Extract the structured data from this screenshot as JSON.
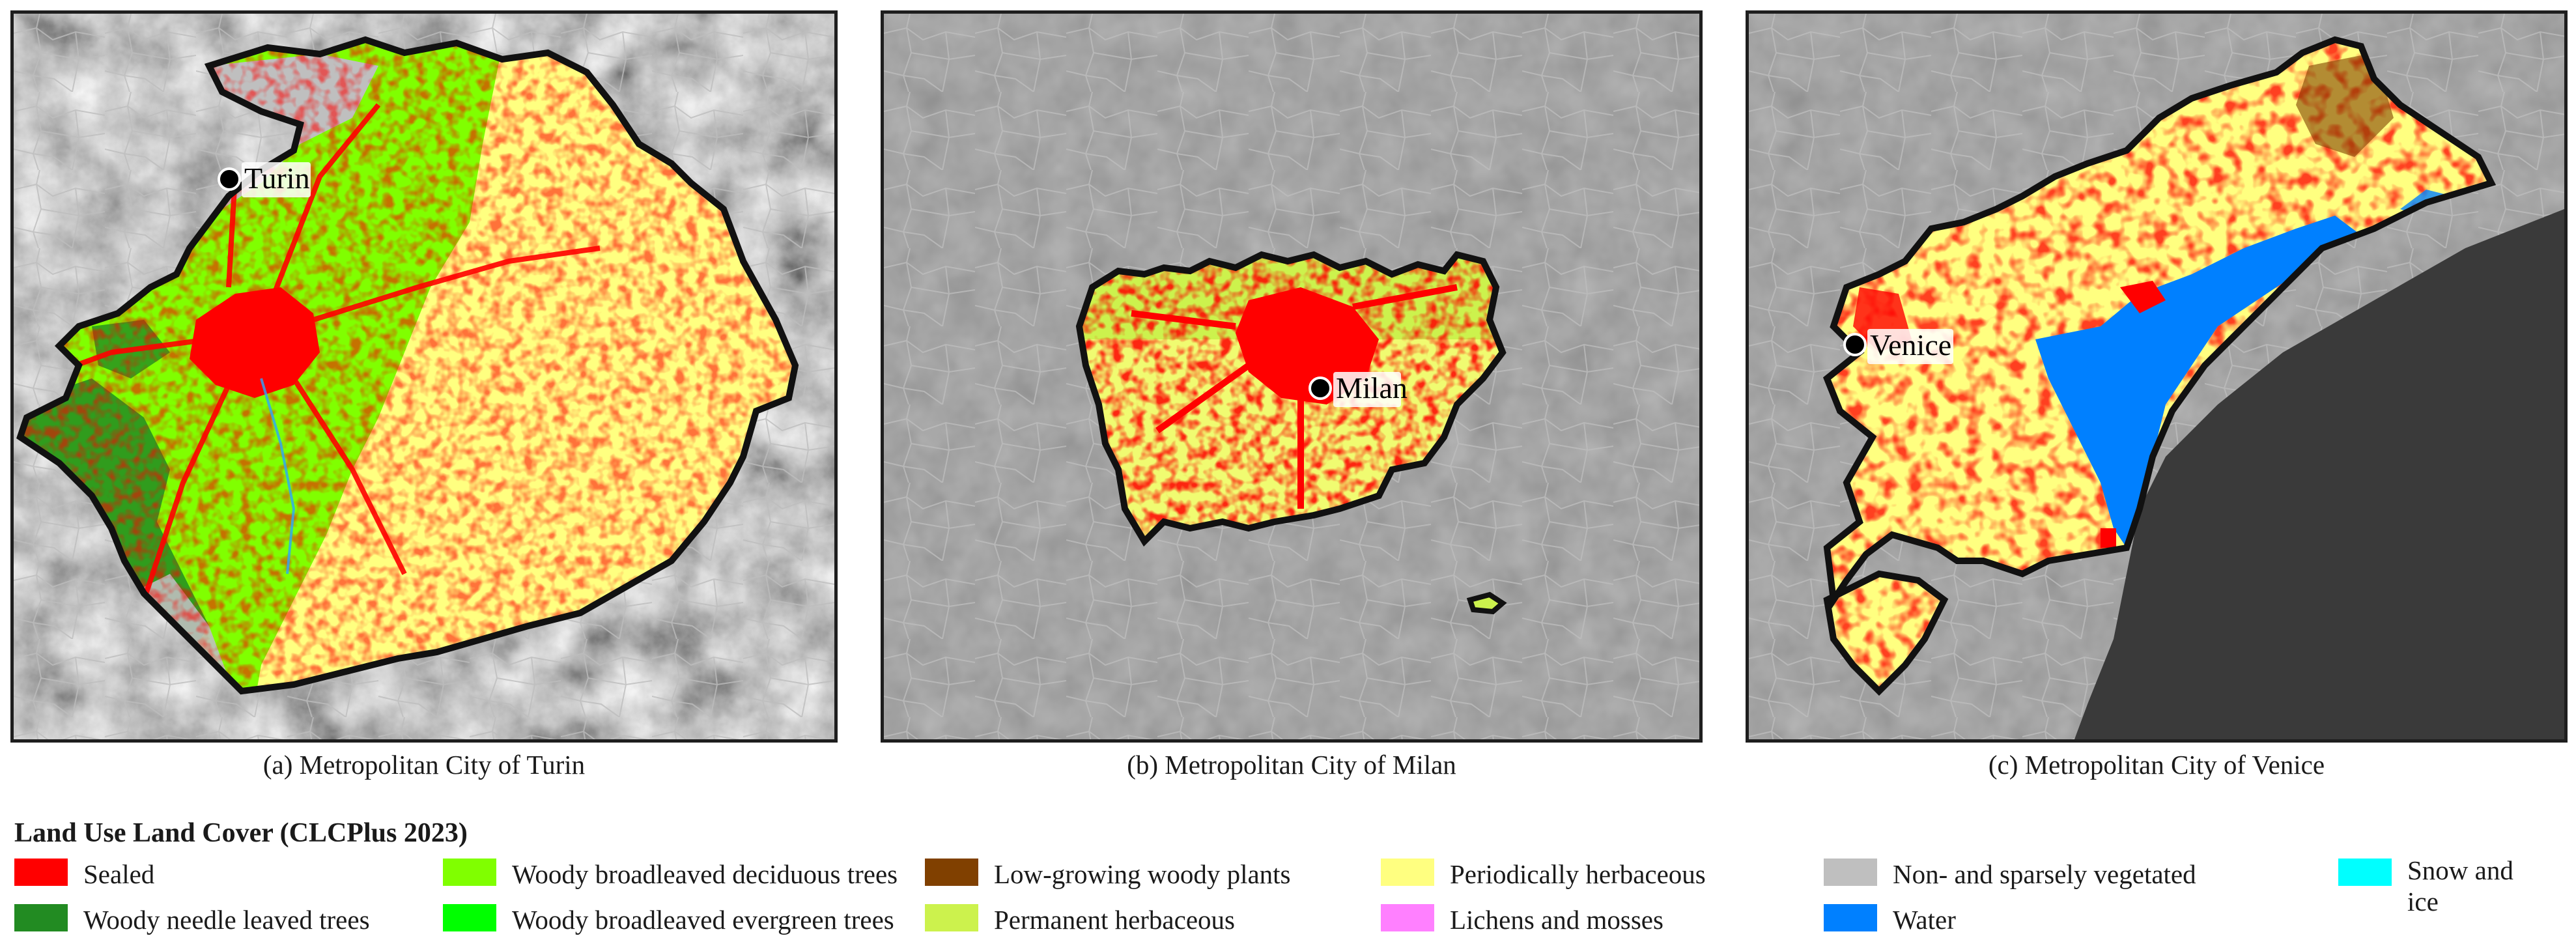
{
  "map": {
    "legend_title": "Land Use Land Cover (CLCPlus 2023)",
    "panels": [
      {
        "caption": "(a) Metropolitan City of Turin",
        "city": "Turin"
      },
      {
        "caption": "(b) Metropolitan City of Milan",
        "city": "Milan"
      },
      {
        "caption": "(c) Metropolitan City of Venice",
        "city": "Venice"
      }
    ],
    "legend": [
      {
        "label": "Sealed",
        "color": "#ff0000"
      },
      {
        "label": "Woody needle leaved trees",
        "color": "#228b22"
      },
      {
        "label": "Woody broadleaved deciduous trees",
        "color": "#80ff00"
      },
      {
        "label": "Woody broadleaved evergreen trees",
        "color": "#00ff00"
      },
      {
        "label": "Low-growing woody plants",
        "color": "#804000"
      },
      {
        "label": "Permanent herbaceous",
        "color": "#ccf24d"
      },
      {
        "label": "Periodically herbaceous",
        "color": "#ffff80"
      },
      {
        "label": "Lichens and mosses",
        "color": "#ff80ff"
      },
      {
        "label": "Non- and sparsely vegetated",
        "color": "#bfbfbf"
      },
      {
        "label": "Water",
        "color": "#0080ff"
      },
      {
        "label": "Snow and ice",
        "color": "#00ffff"
      }
    ]
  }
}
